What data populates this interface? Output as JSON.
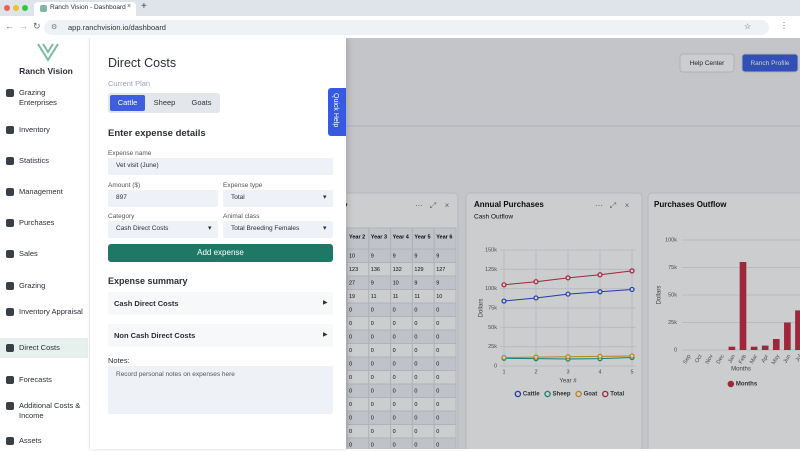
{
  "browser": {
    "tab_title": "Ranch Vision - Dashboard",
    "url": "app.ranchvision.io/dashboard"
  },
  "sidebar": {
    "brand": "Ranch Vision",
    "items": [
      "Grazing Enterprises",
      "Inventory",
      "Statistics",
      "Management",
      "Purchases",
      "Sales",
      "Grazing",
      "Inventory Appraisal",
      "Direct Costs",
      "Forecasts",
      "Additional Costs & Income",
      "Assets"
    ],
    "active": 8
  },
  "header": {
    "buttons": [
      "Help Center",
      "Ranch Profile"
    ]
  },
  "quick_help": "Quick Help",
  "drawer": {
    "title": "Direct Costs",
    "plan_label": "Current Plan",
    "plans": [
      "Cattle",
      "Sheep",
      "Goats"
    ],
    "selected_plan": 0,
    "section_title": "Enter expense details",
    "fields": [
      {
        "label": "Expense name",
        "value": "Vet visit (June)"
      },
      {
        "label": "Amount ($)",
        "value": 897
      },
      {
        "label": "Expense type",
        "value": "Total"
      },
      {
        "label": "Category",
        "value": "Cash Direct Costs"
      },
      {
        "label": "Animal class",
        "value": "Total Breeding Females"
      }
    ],
    "button": "Add expense",
    "summary_title": "Expense summary",
    "summary_items": [
      "Cash Direct Costs",
      "Non Cash Direct Costs"
    ],
    "notes_label": "Notes:",
    "notes_placeholder": "Record personal notes on expenses here"
  },
  "table": {
    "title": "y",
    "columns": [
      "Year 2",
      "Year 3",
      "Year 4",
      "Year 5",
      "Year 6"
    ],
    "rows": [
      [
        10,
        9,
        9,
        9,
        9
      ],
      [
        123,
        136,
        132,
        129,
        127
      ],
      [
        27,
        9,
        10,
        9,
        9
      ],
      [
        19,
        11,
        11,
        11,
        10
      ],
      [
        0,
        0,
        0,
        0,
        0
      ],
      [
        0,
        0,
        0,
        0,
        0
      ],
      [
        0,
        0,
        0,
        0,
        0
      ],
      [
        0,
        0,
        0,
        0,
        0
      ],
      [
        0,
        0,
        0,
        0,
        0
      ],
      [
        0,
        0,
        0,
        0,
        0
      ],
      [
        0,
        0,
        0,
        0,
        0
      ],
      [
        0,
        0,
        0,
        0,
        0
      ],
      [
        0,
        0,
        0,
        0,
        0
      ],
      [
        0,
        0,
        0,
        0,
        0
      ],
      [
        0,
        0,
        0,
        0,
        0
      ]
    ]
  },
  "chart_data": [
    {
      "type": "line",
      "title": "Annual Purchases",
      "subtitle": "Cash Outflow",
      "x_label": "Year #",
      "y_label": "Dollars",
      "x": [
        1,
        2,
        3,
        4,
        5
      ],
      "xlim": [
        1,
        5
      ],
      "xticks": [
        1,
        2,
        3,
        4,
        5
      ],
      "ylim": [
        0,
        150000
      ],
      "yticks": [
        0,
        {
          "value": 25000,
          "label": "25k"
        },
        {
          "value": 50000,
          "label": "50k"
        },
        {
          "value": 75000,
          "label": "75k"
        },
        {
          "value": 100000,
          "label": "100k"
        },
        {
          "value": 125000,
          "label": "125k"
        },
        {
          "value": 150000,
          "label": "150k"
        }
      ],
      "grid": true,
      "legend": "bottom",
      "series": [
        {
          "name": "Cattle",
          "color": "#2340d0",
          "values": [
            84000,
            88000,
            93000,
            96000,
            99000
          ]
        },
        {
          "name": "Sheep",
          "color": "#169c86",
          "values": [
            10000,
            9500,
            9000,
            9500,
            11000
          ]
        },
        {
          "name": "Goat",
          "color": "#e0a11b",
          "values": [
            11000,
            11500,
            12000,
            12500,
            13000
          ]
        },
        {
          "name": "Total",
          "color": "#c3263d",
          "values": [
            105000,
            109000,
            114000,
            118000,
            123000
          ]
        }
      ]
    },
    {
      "type": "bar",
      "title": "Purchases Outflow",
      "x_label": "Months",
      "y_label": "Dollars",
      "categories": [
        "Sep",
        "Oct",
        "Nov",
        "Dec",
        "Jan",
        "Feb",
        "Mar",
        "Apr",
        "May",
        "Jun",
        "Jul"
      ],
      "ylim": [
        0,
        100000
      ],
      "yticks": [
        0,
        {
          "value": 25000,
          "label": "25k"
        },
        {
          "value": 50000,
          "label": "50k"
        },
        {
          "value": 75000,
          "label": "75k"
        },
        {
          "value": 100000,
          "label": "100k"
        }
      ],
      "grid": true,
      "legend": "bottom",
      "series": [
        {
          "name": "Months",
          "color": "#c3263d",
          "values": [
            0,
            0,
            0,
            0,
            3000,
            80000,
            3000,
            4000,
            10000,
            25000,
            36000
          ]
        }
      ]
    }
  ]
}
